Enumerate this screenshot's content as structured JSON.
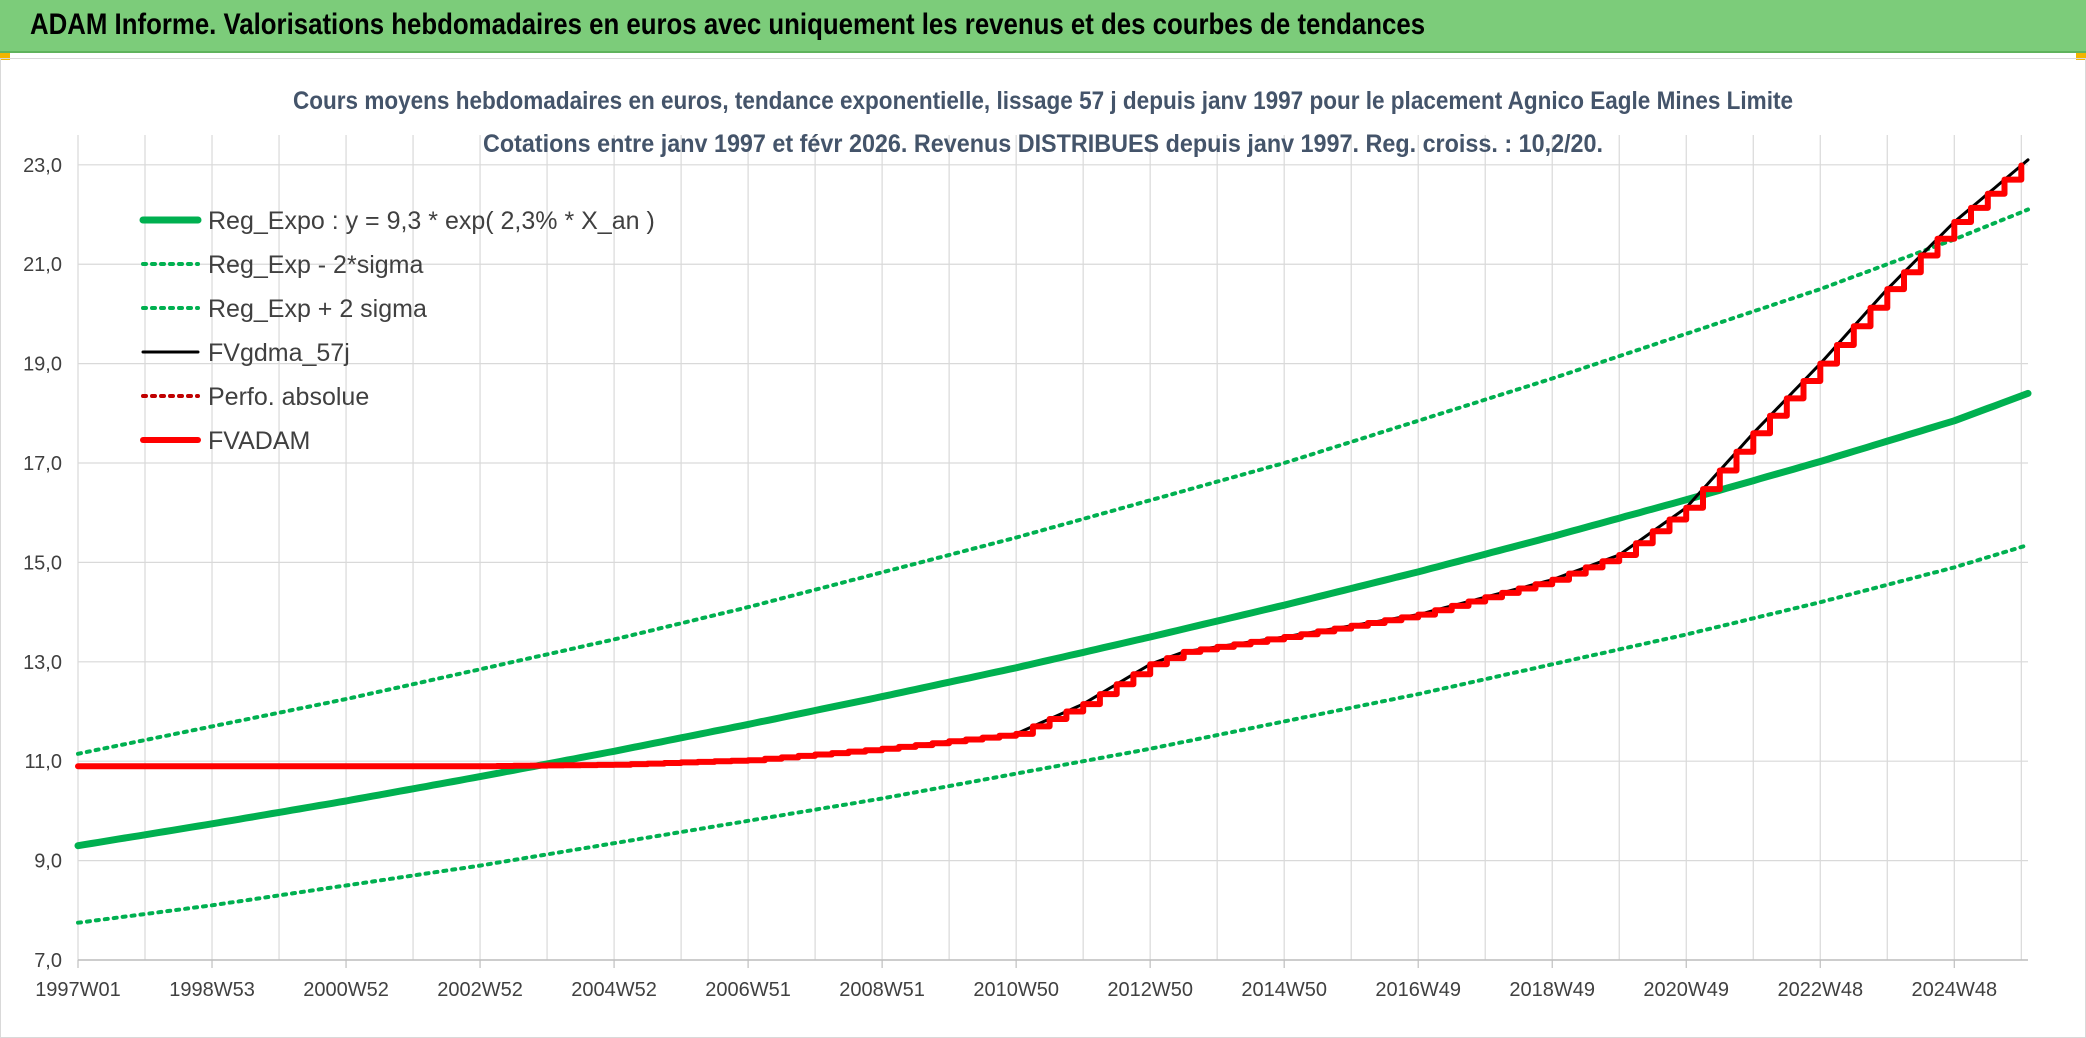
{
  "banner": {
    "title": "ADAM Informe. Valorisations hebdomadaires en euros avec uniquement les revenus et des courbes de tendances"
  },
  "colors": {
    "banner_bg": "#7ccc7a",
    "reg_green": "#00b050",
    "fvadam_red": "#ff0000",
    "fvgdma_black": "#000000",
    "perfo_red": "#c00000",
    "grid": "#d9d9d9",
    "title": "#44546a"
  },
  "chart_data": {
    "type": "line",
    "title": "Cours moyens hebdomadaires en euros, tendance exponentielle, lissage 57 j depuis janv 1997 pour le placement Agnico Eagle Mines Limite",
    "subtitle": "Cotations entre janv 1997 et févr 2026. Revenus DISTRIBUES depuis janv 1997. Reg. croiss. : 10,2/20.",
    "xlabel": "",
    "ylabel": "",
    "xlim": [
      1997.0,
      2026.1
    ],
    "ylim": [
      7.0,
      23.6
    ],
    "y_ticks": [
      7.0,
      9.0,
      11.0,
      13.0,
      15.0,
      17.0,
      19.0,
      21.0,
      23.0
    ],
    "y_tick_labels": [
      "7,0",
      "9,0",
      "11,0",
      "13,0",
      "15,0",
      "17,0",
      "19,0",
      "21,0",
      "23,0"
    ],
    "x_ticks": [
      1997.0,
      1999.0,
      2001.0,
      2003.0,
      2005.0,
      2007.0,
      2009.0,
      2011.0,
      2013.0,
      2015.0,
      2017.0,
      2019.0,
      2021.0,
      2023.0,
      2025.0
    ],
    "x_tick_labels": [
      "1997W01",
      "1998W53",
      "2000W52",
      "2002W52",
      "2004W52",
      "2006W51",
      "2008W51",
      "2010W50",
      "2012W50",
      "2014W50",
      "2016W49",
      "2018W49",
      "2020W49",
      "2022W48",
      "2024W48"
    ],
    "grid": true,
    "legend_position": "top-left",
    "series": [
      {
        "name": "Reg_Expo : y = 9,3 * exp( 2,3% *  X_an )",
        "style": "solid-thick",
        "color": "#00b050",
        "x": [
          1997.0,
          1999.0,
          2001.0,
          2003.0,
          2005.0,
          2007.0,
          2009.0,
          2011.0,
          2013.0,
          2015.0,
          2017.0,
          2019.0,
          2021.0,
          2023.0,
          2025.0,
          2026.1
        ],
        "y": [
          9.3,
          9.74,
          10.2,
          10.69,
          11.2,
          11.74,
          12.3,
          12.88,
          13.5,
          14.14,
          14.81,
          15.52,
          16.26,
          17.03,
          17.85,
          18.4
        ]
      },
      {
        "name": "Reg_Exp - 2*sigma",
        "style": "dotted",
        "color": "#00b050",
        "x": [
          1997.0,
          1999.0,
          2001.0,
          2003.0,
          2005.0,
          2007.0,
          2009.0,
          2011.0,
          2013.0,
          2015.0,
          2017.0,
          2019.0,
          2021.0,
          2023.0,
          2025.0,
          2026.1
        ],
        "y": [
          7.75,
          8.1,
          8.5,
          8.9,
          9.35,
          9.8,
          10.25,
          10.75,
          11.25,
          11.8,
          12.35,
          12.95,
          13.55,
          14.2,
          14.9,
          15.35
        ]
      },
      {
        "name": "Reg_Exp + 2 sigma",
        "style": "dotted",
        "color": "#00b050",
        "x": [
          1997.0,
          1999.0,
          2001.0,
          2003.0,
          2005.0,
          2007.0,
          2009.0,
          2011.0,
          2013.0,
          2015.0,
          2017.0,
          2019.0,
          2021.0,
          2023.0,
          2025.0,
          2026.1
        ],
        "y": [
          11.15,
          11.7,
          12.25,
          12.85,
          13.45,
          14.1,
          14.8,
          15.5,
          16.25,
          17.0,
          17.85,
          18.7,
          19.6,
          20.5,
          21.5,
          22.1
        ]
      },
      {
        "name": "FVgdma_57j",
        "style": "solid",
        "color": "#000000",
        "x": [
          1997.0,
          2003.0,
          2005.0,
          2007.0,
          2009.0,
          2011.0,
          2012.0,
          2013.0,
          2013.5,
          2015.0,
          2017.0,
          2019.0,
          2020.0,
          2021.0,
          2022.0,
          2023.0,
          2024.0,
          2025.0,
          2026.1
        ],
        "y": [
          10.9,
          10.9,
          10.93,
          11.02,
          11.25,
          11.55,
          12.15,
          12.95,
          13.2,
          13.5,
          13.95,
          14.65,
          15.15,
          16.1,
          17.6,
          19.0,
          20.5,
          21.85,
          23.1
        ]
      },
      {
        "name": "Perfo. absolue",
        "style": "dotted",
        "color": "#c00000",
        "x": [],
        "y": []
      },
      {
        "name": "FVADAM",
        "style": "solid-thick-step",
        "color": "#ff0000",
        "x": [
          1997.0,
          2003.0,
          2005.0,
          2007.0,
          2009.0,
          2011.0,
          2012.0,
          2013.0,
          2013.5,
          2015.0,
          2017.0,
          2019.0,
          2020.0,
          2021.0,
          2022.0,
          2023.0,
          2024.0,
          2025.0,
          2026.1
        ],
        "y": [
          10.9,
          10.9,
          10.93,
          11.02,
          11.25,
          11.55,
          12.15,
          12.95,
          13.2,
          13.5,
          13.95,
          14.65,
          15.15,
          16.1,
          17.6,
          19.0,
          20.5,
          21.85,
          23.1
        ]
      }
    ]
  }
}
